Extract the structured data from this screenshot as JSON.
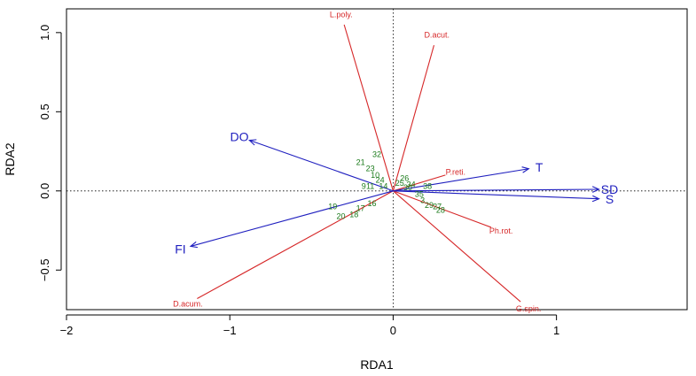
{
  "colors": {
    "species": "#d62728",
    "environment": "#1f1fbf",
    "sites": "#1a7a1a",
    "axes": "#000000"
  },
  "chart_data": {
    "type": "scatter",
    "subtype": "rda-triplot",
    "title": "",
    "xlabel": "RDA1",
    "ylabel": "RDA2",
    "xlim": [
      -2.0,
      1.8
    ],
    "ylim": [
      -0.75,
      1.15
    ],
    "xticks": [
      -2,
      -1,
      0,
      1
    ],
    "xtick_labels": [
      "−2",
      "−1",
      "0",
      "1"
    ],
    "yticks": [
      -0.5,
      0.0,
      0.5,
      1.0
    ],
    "ytick_labels": [
      "−0.5",
      "0.0",
      "0.5",
      "1.0"
    ],
    "zero_lines": true,
    "species": [
      {
        "name": "L.poly.",
        "x": -0.3,
        "y": 1.05
      },
      {
        "name": "D.acut.",
        "x": 0.25,
        "y": 0.92
      },
      {
        "name": "P.reti.",
        "x": 0.32,
        "y": 0.1
      },
      {
        "name": "Ph.rot.",
        "x": 0.6,
        "y": -0.23
      },
      {
        "name": "G.spin.",
        "x": 0.78,
        "y": -0.7
      },
      {
        "name": "D.acum.",
        "x": -1.2,
        "y": -0.68
      }
    ],
    "environment": [
      {
        "name": "DO",
        "x": -0.88,
        "y": 0.32
      },
      {
        "name": "T",
        "x": 0.83,
        "y": 0.14
      },
      {
        "name": "SD",
        "x": 1.26,
        "y": 0.01
      },
      {
        "name": "S",
        "x": 1.26,
        "y": -0.05
      },
      {
        "name": "FI",
        "x": -1.24,
        "y": -0.35
      }
    ],
    "sites": [
      {
        "name": "32",
        "x": -0.1,
        "y": 0.23
      },
      {
        "name": "21",
        "x": -0.2,
        "y": 0.18
      },
      {
        "name": "23",
        "x": -0.14,
        "y": 0.14
      },
      {
        "name": "10",
        "x": -0.11,
        "y": 0.1
      },
      {
        "name": "24",
        "x": -0.08,
        "y": 0.07
      },
      {
        "name": "9",
        "x": -0.18,
        "y": 0.03
      },
      {
        "name": "11",
        "x": -0.14,
        "y": 0.03
      },
      {
        "name": "14",
        "x": -0.06,
        "y": 0.03
      },
      {
        "name": "26",
        "x": 0.07,
        "y": 0.08
      },
      {
        "name": "25",
        "x": 0.04,
        "y": 0.05
      },
      {
        "name": "34",
        "x": 0.11,
        "y": 0.04
      },
      {
        "name": "38",
        "x": 0.21,
        "y": 0.03
      },
      {
        "name": "30",
        "x": 0.09,
        "y": 0.02
      },
      {
        "name": "35",
        "x": 0.16,
        "y": -0.02
      },
      {
        "name": "19",
        "x": -0.37,
        "y": -0.1
      },
      {
        "name": "20",
        "x": -0.32,
        "y": -0.16
      },
      {
        "name": "18",
        "x": -0.24,
        "y": -0.15
      },
      {
        "name": "17",
        "x": -0.2,
        "y": -0.11
      },
      {
        "name": "16",
        "x": -0.13,
        "y": -0.08
      },
      {
        "name": "29",
        "x": 0.22,
        "y": -0.09
      },
      {
        "name": "27",
        "x": 0.27,
        "y": -0.1
      },
      {
        "name": "28",
        "x": 0.29,
        "y": -0.12
      },
      {
        "name": "3",
        "x": 0.18,
        "y": -0.06
      }
    ]
  }
}
